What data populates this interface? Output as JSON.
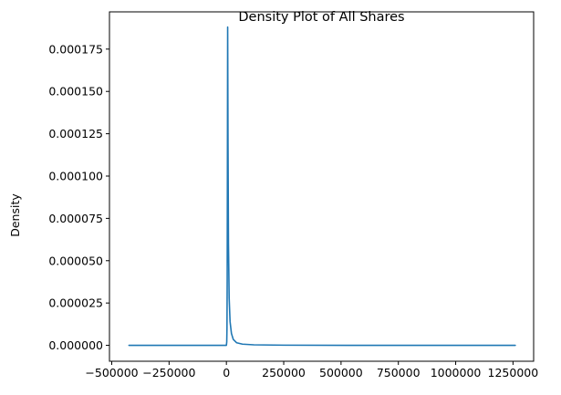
{
  "chart_data": {
    "type": "line",
    "title": "Density Plot of All Shares",
    "xlabel": "",
    "ylabel": "Density",
    "xlim": [
      -510000,
      1340000
    ],
    "ylim": [
      -9.4e-06,
      0.000197
    ],
    "xticks": [
      -500000,
      -250000,
      0,
      250000,
      500000,
      750000,
      1000000,
      1250000
    ],
    "xtick_labels": [
      "−500000",
      "−250000",
      "0",
      "250000",
      "500000",
      "750000",
      "1000000",
      "1250000"
    ],
    "yticks": [
      0,
      2.5e-05,
      5e-05,
      7.5e-05,
      0.0001,
      0.000125,
      0.00015,
      0.000175
    ],
    "ytick_labels": [
      "0.000000",
      "0.000025",
      "0.000050",
      "0.000075",
      "0.000100",
      "0.000125",
      "0.000150",
      "0.000175"
    ],
    "grid": false,
    "legend": false,
    "series": [
      {
        "color": "#1f77b4",
        "x": [
          -425000,
          -50000,
          0,
          1500,
          2500,
          3500,
          4500,
          5500,
          7000,
          9000,
          12000,
          16000,
          22000,
          30000,
          45000,
          70000,
          120000,
          250000,
          600000,
          1000000,
          1260000
        ],
        "y": [
          0,
          0,
          0,
          2e-06,
          1e-05,
          4e-05,
          0.00011,
          0.000188,
          0.00012,
          6e-05,
          2.8e-05,
          1.4e-05,
          7e-06,
          3.5e-06,
          1.5e-06,
          7e-07,
          3e-07,
          1e-07,
          0,
          0,
          0
        ]
      }
    ]
  }
}
